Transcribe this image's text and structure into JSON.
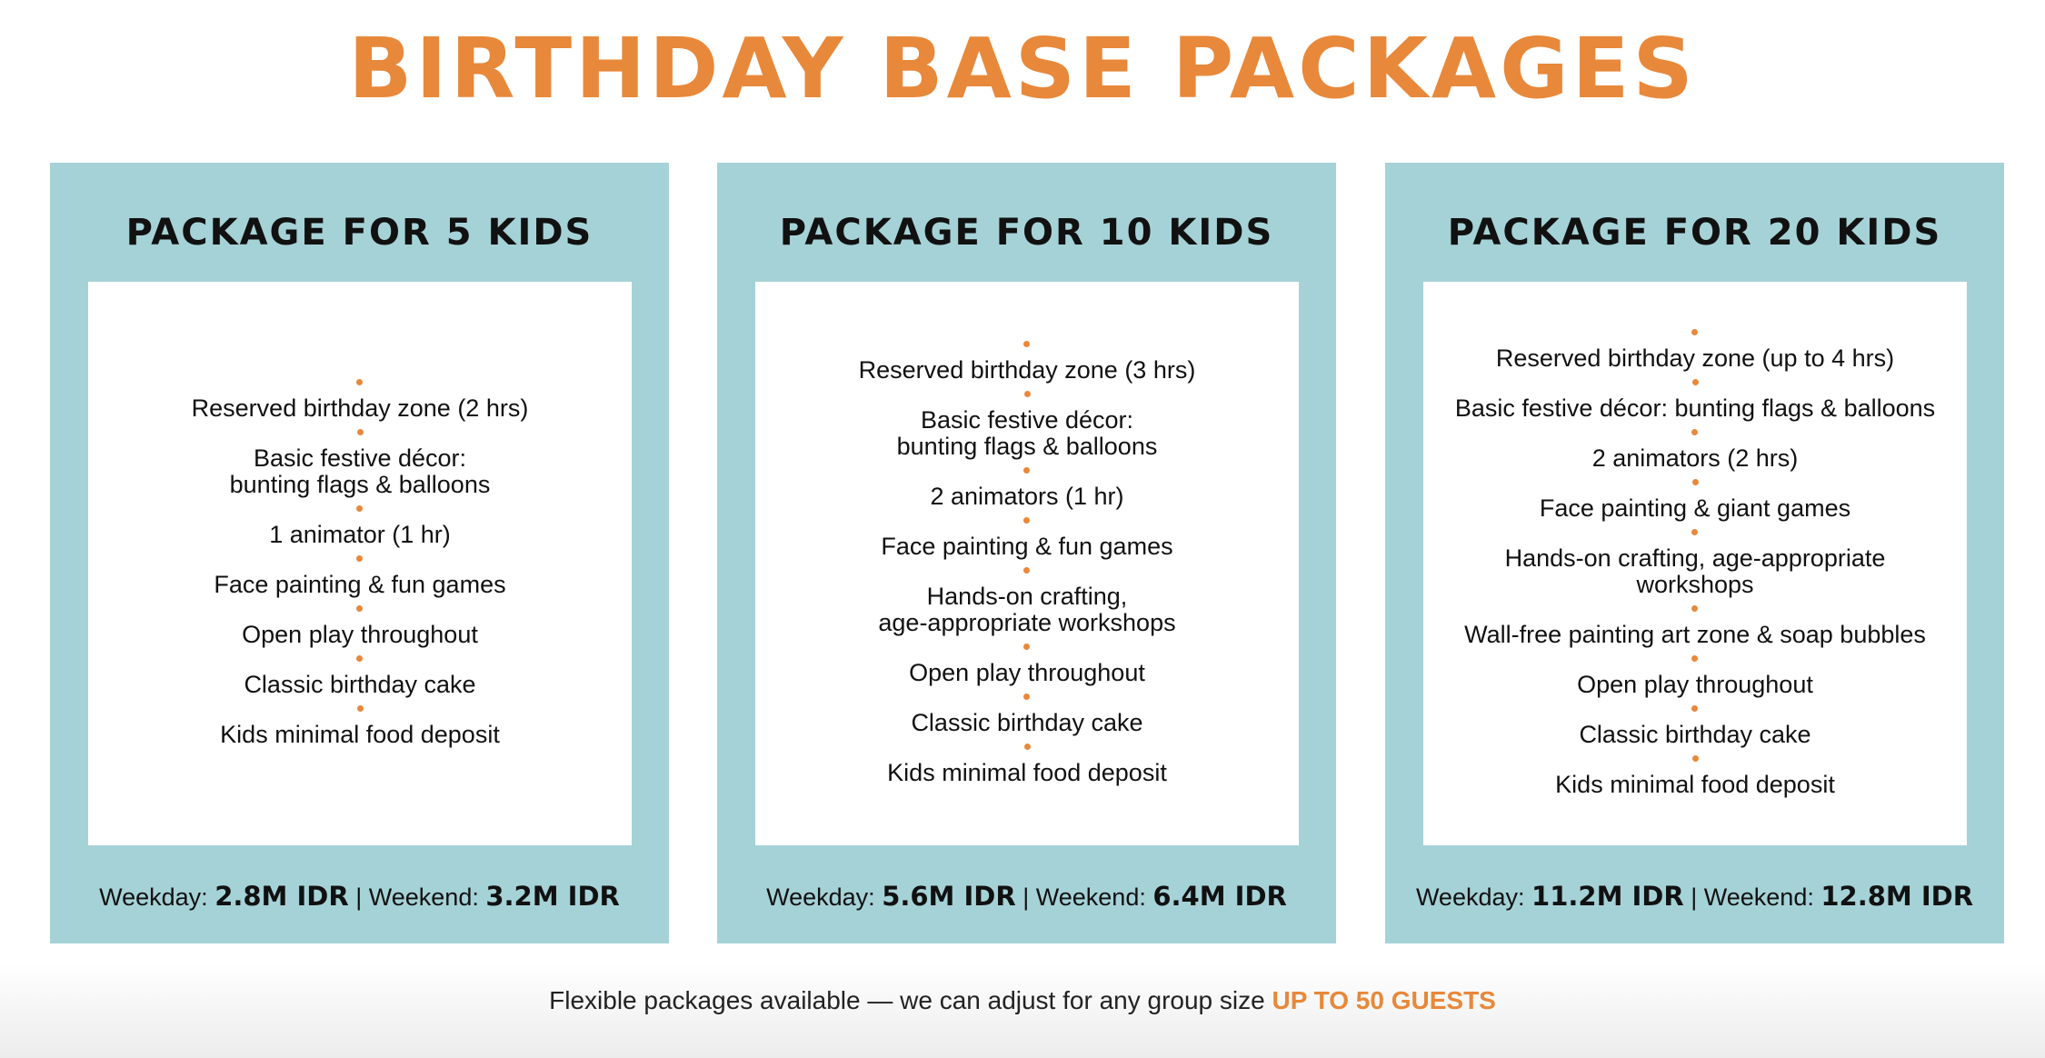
{
  "title": "BIRTHDAY BASE PACKAGES",
  "accent_color": "#E8883A",
  "card_color": "#A5D2D7",
  "packages": [
    {
      "title": "PACKAGE FOR 5 KIDS",
      "items": [
        "Reserved birthday zone (2 hrs)",
        "Basic festive décor:\nbunting flags & balloons",
        "1 animator (1 hr)",
        "Face painting & fun games",
        "Open play throughout",
        "Classic birthday cake",
        "Kids minimal food deposit"
      ],
      "weekday_label": "Weekday:",
      "weekday_price": "2.8M IDR",
      "separator": "|",
      "weekend_label": "Weekend:",
      "weekend_price": "3.2M IDR"
    },
    {
      "title": "PACKAGE FOR 10 KIDS",
      "items": [
        "Reserved birthday zone (3 hrs)",
        "Basic festive décor:\nbunting flags & balloons",
        "2 animators (1 hr)",
        "Face painting & fun games",
        "Hands-on crafting,\nage-appropriate workshops",
        "Open play throughout",
        "Classic birthday cake",
        "Kids minimal food deposit"
      ],
      "weekday_label": "Weekday:",
      "weekday_price": "5.6M IDR",
      "separator": "|",
      "weekend_label": "Weekend:",
      "weekend_price": "6.4M IDR"
    },
    {
      "title": "PACKAGE FOR 20 KIDS",
      "items": [
        "Reserved birthday zone (up to 4 hrs)",
        "Basic festive décor: bunting flags & balloons",
        "2 animators (2 hrs)",
        "Face painting & giant games",
        "Hands-on crafting, age-appropriate\nworkshops",
        "Wall-free painting art zone & soap bubbles",
        "Open play throughout",
        "Classic birthday cake",
        "Kids minimal food deposit"
      ],
      "weekday_label": "Weekday:",
      "weekday_price": "11.2M IDR",
      "separator": "|",
      "weekend_label": "Weekend:",
      "weekend_price": "12.8M IDR"
    }
  ],
  "footer": {
    "text": "Flexible packages available — we can adjust for any group size",
    "highlight": "UP TO 50 GUESTS"
  }
}
